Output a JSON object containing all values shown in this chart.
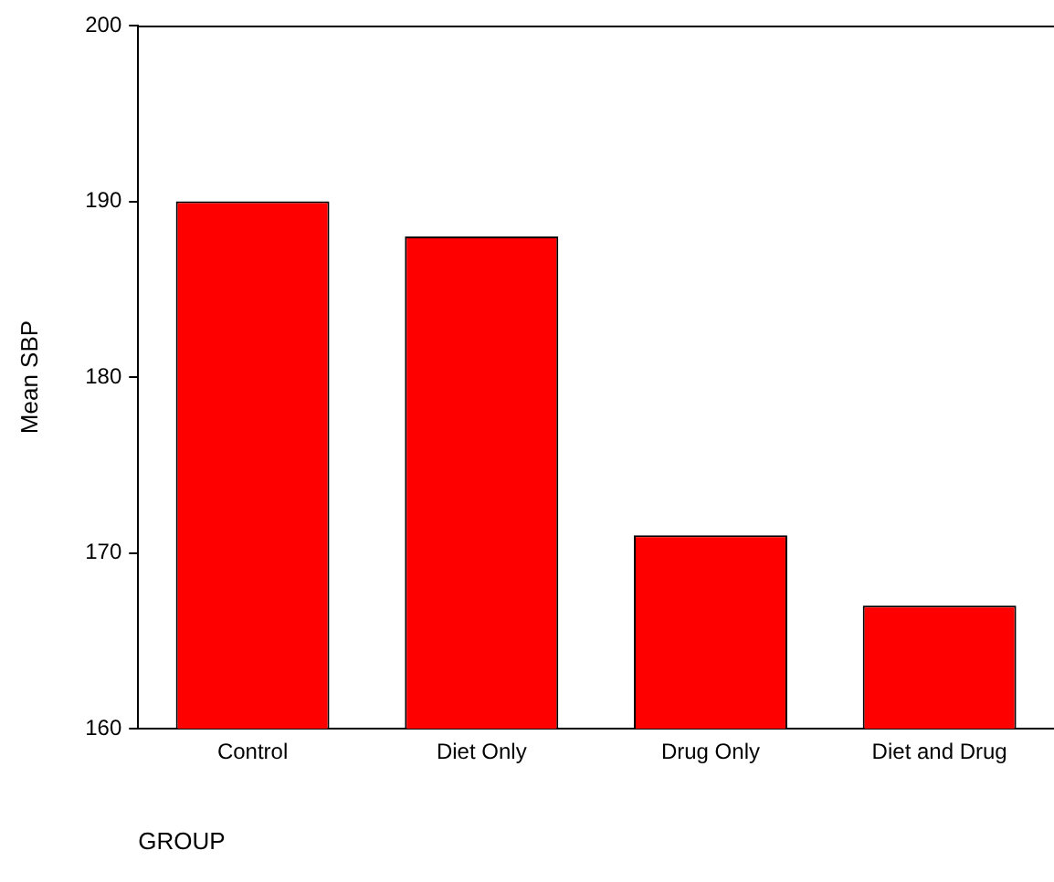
{
  "chart_data": {
    "type": "bar",
    "xlabel": "GROUP",
    "ylabel": "Mean SBP",
    "categories": [
      "Control",
      "Diet Only",
      "Drug Only",
      "Diet and Drug"
    ],
    "values": [
      190,
      188,
      171,
      167
    ],
    "color": "#ff0000",
    "ylim": [
      160,
      200
    ],
    "yticks": [
      160,
      170,
      180,
      190,
      200
    ],
    "grid": false,
    "legend": false
  }
}
